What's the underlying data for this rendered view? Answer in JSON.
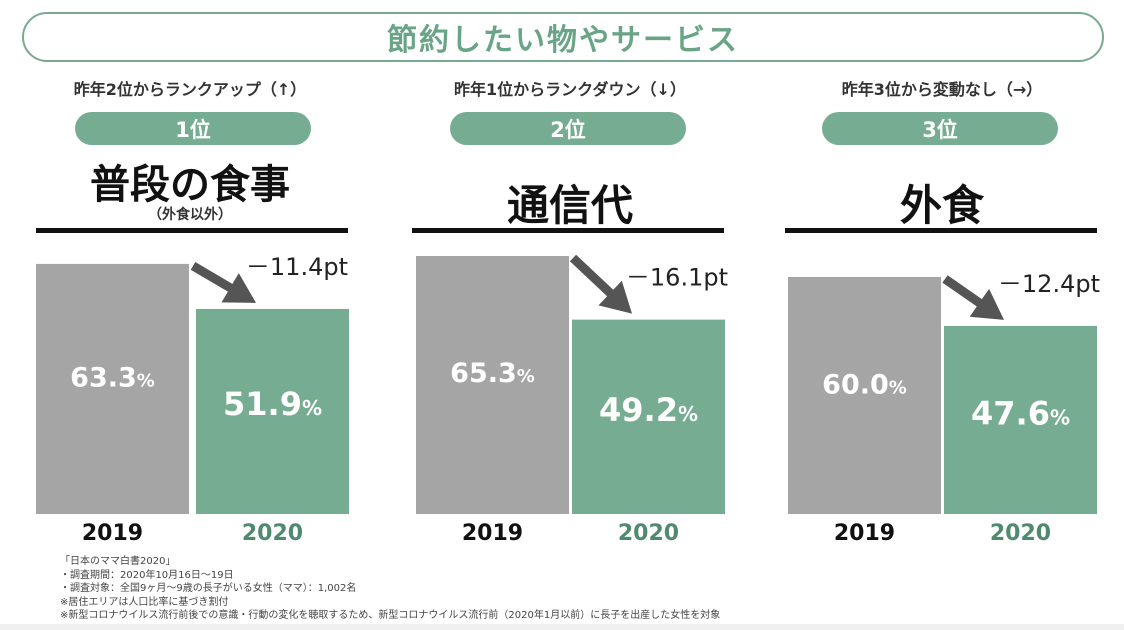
{
  "title": "節約したい物やサービス",
  "colors": {
    "accent": "#76ad92",
    "bar_2019": "#a5a5a5",
    "bar_2020": "#76ad92",
    "arrow": "#555555",
    "title_text": "#6aa487"
  },
  "panels": [
    {
      "rank_note": "昨年2位からランクアップ（↑）",
      "rank_label": "1位",
      "category": "普段の食事",
      "category_note": "（外食以外）",
      "change": "－11.4pt"
    },
    {
      "rank_note": "昨年1位からランクダウン（↓）",
      "rank_label": "2位",
      "category": "通信代",
      "category_note": "",
      "change": "－16.1pt"
    },
    {
      "rank_note": "昨年3位から変動なし（→）",
      "rank_label": "3位",
      "category": "外食",
      "category_note": "",
      "change": "－12.4pt"
    }
  ],
  "chart_data": [
    {
      "type": "bar",
      "title": "普段の食事",
      "categories": [
        "2019",
        "2020"
      ],
      "values": [
        63.3,
        51.9
      ],
      "value_labels": [
        "63.3",
        "51.9"
      ],
      "unit": "%",
      "ylim": [
        0,
        65.3
      ],
      "grid": false
    },
    {
      "type": "bar",
      "title": "通信代",
      "categories": [
        "2019",
        "2020"
      ],
      "values": [
        65.3,
        49.2
      ],
      "value_labels": [
        "65.3",
        "49.2"
      ],
      "unit": "%",
      "ylim": [
        0,
        65.3
      ],
      "grid": false
    },
    {
      "type": "bar",
      "title": "外食",
      "categories": [
        "2019",
        "2020"
      ],
      "values": [
        60.0,
        47.6
      ],
      "value_labels": [
        "60.0",
        "47.6"
      ],
      "unit": "%",
      "ylim": [
        0,
        65.3
      ],
      "grid": false
    }
  ],
  "notes": [
    "「日本のママ白書2020」",
    "・調査期間：2020年10月16日～19日",
    "・調査対象：全国9ヶ月～9歳の長子がいる女性（ママ）：1,002名",
    "※居住エリアは人口比率に基づき割付",
    "※新型コロナウイルス流行前後での意識・行動の変化を聴取するため、新型コロナウイルス流行前（2020年1月以前）に長子を出産した女性を対象"
  ]
}
